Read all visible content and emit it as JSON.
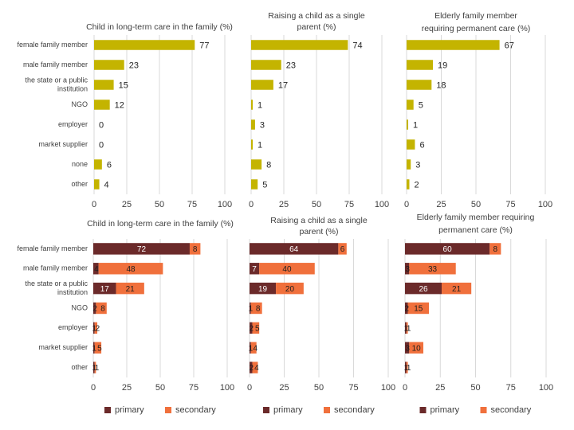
{
  "colors": {
    "single": "#c4b400",
    "primary": "#6b2a2a",
    "secondary": "#f0703c",
    "grid": "#d9d9d9",
    "panel": "#ececec",
    "text": "#404040"
  },
  "chart_data": [
    {
      "type": "bar",
      "orientation": "horizontal",
      "title": "Child in long-term care in the family (%)",
      "categories": [
        "female family member",
        "male family member",
        "the state or a public institution",
        "NGO",
        "employer",
        "market supplier",
        "none",
        "other"
      ],
      "series": [
        {
          "values": [
            77,
            23,
            15,
            12,
            0,
            0,
            6,
            4
          ]
        }
      ],
      "xlim": [
        0,
        100
      ],
      "ticks": [
        "0",
        "25",
        "50",
        "75",
        "100"
      ]
    },
    {
      "type": "bar",
      "orientation": "horizontal",
      "title": "Raising a child as a single parent (%)",
      "categories": [
        "female family member",
        "male family member",
        "the state or a public institution",
        "NGO",
        "employer",
        "market supplier",
        "none",
        "other"
      ],
      "series": [
        {
          "values": [
            74,
            23,
            17,
            1,
            3,
            1,
            8,
            5
          ]
        }
      ],
      "xlim": [
        0,
        100
      ],
      "ticks": [
        "0",
        "25",
        "50",
        "75",
        "100"
      ]
    },
    {
      "type": "bar",
      "orientation": "horizontal",
      "title": "Elderly family member requiring permanent care (%)",
      "categories": [
        "female family member",
        "male family member",
        "the state or a public institution",
        "NGO",
        "employer",
        "market supplier",
        "none",
        "other"
      ],
      "series": [
        {
          "values": [
            67,
            19,
            18,
            5,
            1,
            6,
            3,
            2
          ]
        }
      ],
      "xlim": [
        0,
        100
      ],
      "ticks": [
        "0",
        "25",
        "50",
        "75",
        "100"
      ]
    },
    {
      "type": "bar",
      "orientation": "horizontal",
      "stacked": true,
      "title": "Child in long-term care in the family (%)",
      "categories": [
        "female family member",
        "male family member",
        "the state or a public institution",
        "NGO",
        "employer",
        "market supplier",
        "other"
      ],
      "series": [
        {
          "name": "primary",
          "values": [
            72,
            4,
            17,
            2,
            1,
            1,
            1
          ]
        },
        {
          "name": "secondary",
          "values": [
            8,
            48,
            21,
            8,
            2,
            5,
            1
          ]
        }
      ],
      "xlim": [
        0,
        100
      ],
      "ticks": [
        "0",
        "25",
        "50",
        "75",
        "100"
      ],
      "legend": "bottom"
    },
    {
      "type": "bar",
      "orientation": "horizontal",
      "stacked": true,
      "title": "Raising a child as a single parent (%)",
      "categories": [
        "female family member",
        "male family member",
        "the state or a public institution",
        "NGO",
        "employer",
        "market supplier",
        "other"
      ],
      "series": [
        {
          "name": "primary",
          "values": [
            64,
            7,
            19,
            1,
            2,
            1,
            2
          ]
        },
        {
          "name": "secondary",
          "values": [
            6,
            40,
            20,
            8,
            5,
            4,
            4
          ]
        }
      ],
      "xlim": [
        0,
        100
      ],
      "ticks": [
        "0",
        "25",
        "50",
        "75",
        "100"
      ],
      "legend": "bottom"
    },
    {
      "type": "bar",
      "orientation": "horizontal",
      "stacked": true,
      "title": "Elderly family member requiring permanent care (%)",
      "categories": [
        "female family member",
        "male family member",
        "the state or a public institution",
        "NGO",
        "employer",
        "market supplier",
        "other"
      ],
      "series": [
        {
          "name": "primary",
          "values": [
            60,
            3,
            26,
            2,
            1,
            3,
            1
          ]
        },
        {
          "name": "secondary",
          "values": [
            8,
            33,
            21,
            15,
            1,
            10,
            1
          ]
        }
      ],
      "xlim": [
        0,
        100
      ],
      "ticks": [
        "0",
        "25",
        "50",
        "75",
        "100"
      ],
      "legend": "bottom"
    }
  ]
}
